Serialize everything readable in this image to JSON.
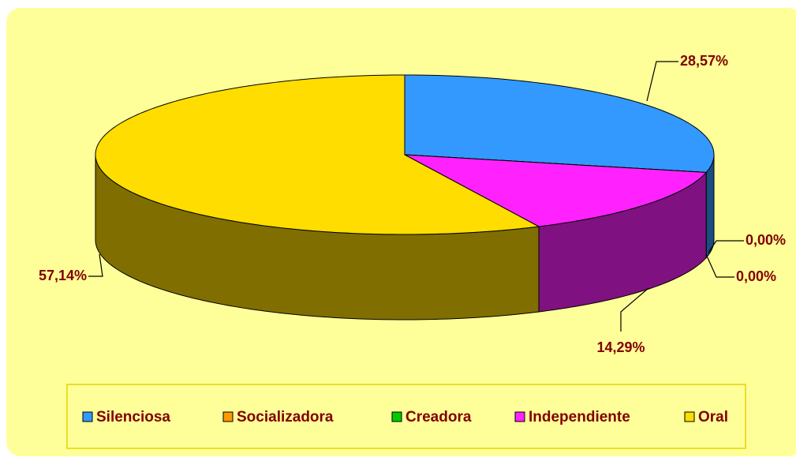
{
  "chart_data": {
    "type": "pie",
    "categories": [
      "Silenciosa",
      "Socializadora",
      "Creadora",
      "Independiente",
      "Oral"
    ],
    "values": [
      28.57,
      0,
      0,
      14.29,
      57.14
    ],
    "value_labels": [
      "28,57%",
      "0,00%",
      "0,00%",
      "14,29%",
      "57,14%"
    ],
    "colors": [
      "#3399ff",
      "#ff9900",
      "#00cc00",
      "#ff22ff",
      "#ffdd00"
    ],
    "legend": "bottom"
  }
}
